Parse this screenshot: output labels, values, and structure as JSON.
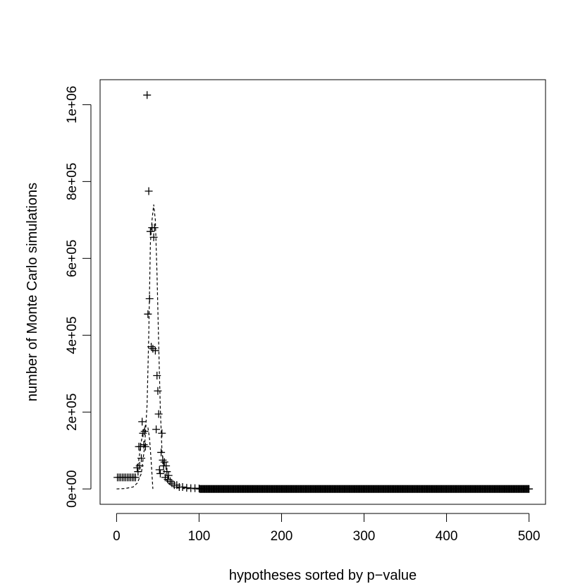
{
  "chart_data": {
    "type": "scatter",
    "xlabel": "hypotheses sorted by p−value",
    "ylabel": "number of Monte Carlo simulations",
    "xlim": [
      -20,
      520
    ],
    "ylim": [
      -40000,
      1065000
    ],
    "x_ticks": [
      {
        "value": 0,
        "label": "0"
      },
      {
        "value": 100,
        "label": "100"
      },
      {
        "value": 200,
        "label": "200"
      },
      {
        "value": 300,
        "label": "300"
      },
      {
        "value": 400,
        "label": "400"
      },
      {
        "value": 500,
        "label": "500"
      }
    ],
    "y_ticks": [
      {
        "value": 0,
        "label": "0e+00"
      },
      {
        "value": 200000,
        "label": "2e+05"
      },
      {
        "value": 400000,
        "label": "4e+05"
      },
      {
        "value": 600000,
        "label": "6e+05"
      },
      {
        "value": 800000,
        "label": "8e+05"
      },
      {
        "value": 1000000,
        "label": "1e+06"
      }
    ],
    "grid": false,
    "legend": "none",
    "series": [
      {
        "style": "plus-markers",
        "points": [
          [
            1,
            30000
          ],
          [
            3,
            30000
          ],
          [
            5,
            30000
          ],
          [
            7,
            30000
          ],
          [
            9,
            30000
          ],
          [
            11,
            30000
          ],
          [
            13,
            30000
          ],
          [
            15,
            30000
          ],
          [
            17,
            30000
          ],
          [
            19,
            30000
          ],
          [
            21,
            30000
          ],
          [
            23,
            30000
          ],
          [
            25,
            55000
          ],
          [
            26,
            45000
          ],
          [
            27,
            110000
          ],
          [
            28,
            60000
          ],
          [
            29,
            110000
          ],
          [
            30,
            80000
          ],
          [
            31,
            175000
          ],
          [
            32,
            145000
          ],
          [
            33,
            115000
          ],
          [
            34,
            150000
          ],
          [
            35,
            110000
          ],
          [
            37,
            1025000
          ],
          [
            38,
            455000
          ],
          [
            39,
            775000
          ],
          [
            40,
            495000
          ],
          [
            41,
            670000
          ],
          [
            42,
            370000
          ],
          [
            43,
            680000
          ],
          [
            44,
            365000
          ],
          [
            45,
            655000
          ],
          [
            46,
            680000
          ],
          [
            47,
            360000
          ],
          [
            48,
            155000
          ],
          [
            49,
            295000
          ],
          [
            50,
            255000
          ],
          [
            51,
            195000
          ],
          [
            52,
            50000
          ],
          [
            53,
            40000
          ],
          [
            54,
            95000
          ],
          [
            55,
            145000
          ],
          [
            56,
            75000
          ],
          [
            57,
            60000
          ],
          [
            58,
            70000
          ],
          [
            59,
            30000
          ],
          [
            60,
            60000
          ],
          [
            61,
            45000
          ],
          [
            62,
            25000
          ],
          [
            63,
            35000
          ],
          [
            65,
            20000
          ],
          [
            67,
            15000
          ],
          [
            70,
            10000
          ],
          [
            73,
            10000
          ],
          [
            76,
            5000
          ],
          [
            80,
            5000
          ],
          [
            85,
            3000
          ],
          [
            90,
            2000
          ],
          [
            95,
            2000
          ],
          [
            100,
            1000
          ]
        ],
        "tail_from": 101,
        "tail_to": 500,
        "tail_value": 0
      },
      {
        "style": "dashed-line",
        "points": [
          [
            0,
            0
          ],
          [
            10,
            1000
          ],
          [
            20,
            5000
          ],
          [
            25,
            15000
          ],
          [
            30,
            40000
          ],
          [
            34,
            110000
          ],
          [
            37,
            220000
          ],
          [
            39,
            400000
          ],
          [
            41,
            640000
          ],
          [
            43,
            700000
          ],
          [
            45,
            740000
          ],
          [
            47,
            700000
          ],
          [
            49,
            560000
          ],
          [
            51,
            380000
          ],
          [
            53,
            210000
          ],
          [
            55,
            100000
          ],
          [
            58,
            40000
          ],
          [
            62,
            15000
          ],
          [
            70,
            4000
          ],
          [
            80,
            1000
          ],
          [
            100,
            200
          ],
          [
            500,
            0
          ]
        ]
      },
      {
        "style": "dashed-line",
        "points": [
          [
            26,
            60000
          ],
          [
            29,
            110000
          ],
          [
            32,
            150000
          ],
          [
            35,
            165000
          ],
          [
            38,
            160000
          ],
          [
            40,
            130000
          ],
          [
            42,
            70000
          ],
          [
            44,
            0
          ]
        ]
      }
    ]
  }
}
